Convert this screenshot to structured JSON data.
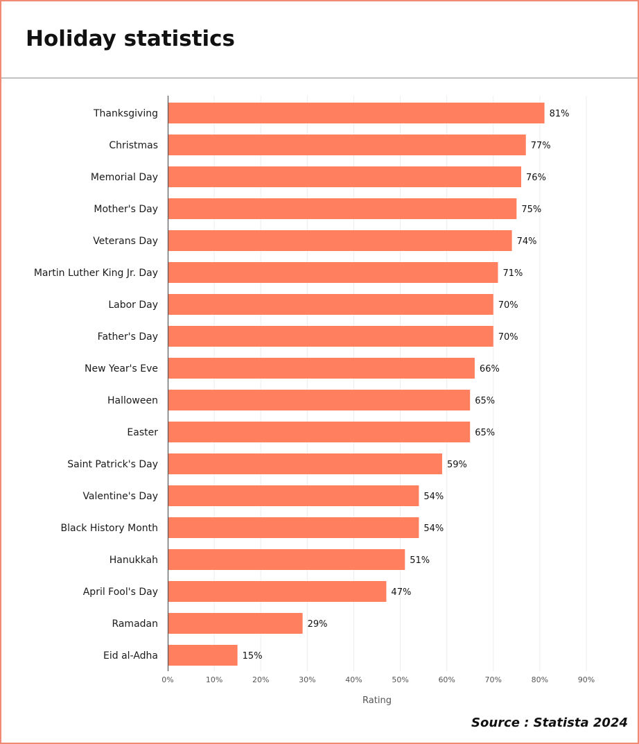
{
  "title": "Holiday statistics",
  "source": "Source : Statista 2024",
  "colors": {
    "bar": "#ff7f5e",
    "border": "#f08a72",
    "grid": "#ececec",
    "axis": "#555555"
  },
  "chart_data": {
    "type": "bar",
    "orientation": "horizontal",
    "categories": [
      "Thanksgiving",
      "Christmas",
      "Memorial Day",
      "Mother's Day",
      "Veterans Day",
      "Martin Luther King Jr. Day",
      "Labor Day",
      "Father's Day",
      "New Year's Eve",
      "Halloween",
      "Easter",
      "Saint Patrick's Day",
      "Valentine's Day",
      "Black History Month",
      "Hanukkah",
      "April Fool's Day",
      "Ramadan",
      "Eid al-Adha"
    ],
    "values": [
      81,
      77,
      76,
      75,
      74,
      71,
      70,
      70,
      66,
      65,
      65,
      59,
      54,
      54,
      51,
      47,
      29,
      15
    ],
    "value_labels": [
      "81%",
      "77%",
      "76%",
      "75%",
      "74%",
      "71%",
      "70%",
      "70%",
      "66%",
      "65%",
      "65%",
      "59%",
      "54%",
      "54%",
      "51%",
      "47%",
      "29%",
      "15%"
    ],
    "xlabel": "Rating",
    "xlim": [
      0,
      90
    ],
    "xticks": [
      0,
      10,
      20,
      30,
      40,
      50,
      60,
      70,
      80,
      90
    ],
    "xtick_labels": [
      "0%",
      "10%",
      "20%",
      "30%",
      "40%",
      "50%",
      "60%",
      "70%",
      "80%",
      "90%"
    ],
    "grid": true
  }
}
